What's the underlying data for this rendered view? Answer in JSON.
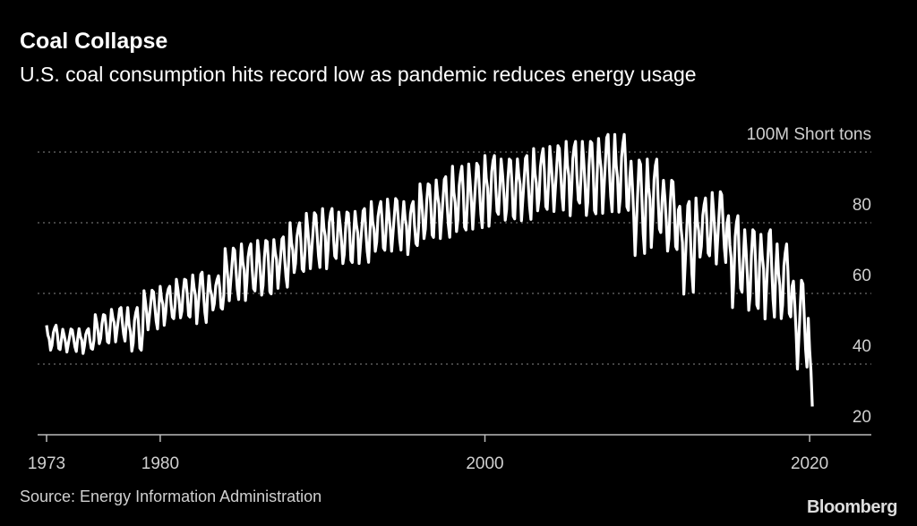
{
  "chart_data": {
    "type": "line",
    "title": "Coal Collapse",
    "subtitle": "U.S. coal consumption hits record low as pandemic reduces energy usage",
    "ylabel": "100M Short tons",
    "xlabel": "",
    "ylim": [
      20,
      100
    ],
    "yticks": [
      20,
      40,
      60,
      80,
      100
    ],
    "ytick_labels": [
      "20",
      "40",
      "60",
      "80"
    ],
    "xlim": [
      1973,
      2022.5
    ],
    "xticks": [
      1973,
      1980,
      2000,
      2020
    ],
    "xtick_labels": [
      "1973",
      "1980",
      "2000",
      "2020"
    ],
    "grid": true,
    "series_note": "monthly, annual min/max approximated",
    "annual": [
      [
        1973,
        43,
        51
      ],
      [
        1974,
        43,
        50
      ],
      [
        1975,
        43,
        50
      ],
      [
        1976,
        45,
        54
      ],
      [
        1977,
        46,
        56
      ],
      [
        1978,
        42,
        56
      ],
      [
        1979,
        49,
        61
      ],
      [
        1980,
        51,
        62
      ],
      [
        1981,
        52,
        64
      ],
      [
        1982,
        51,
        66
      ],
      [
        1983,
        54,
        65
      ],
      [
        1984,
        57,
        73
      ],
      [
        1985,
        58,
        74
      ],
      [
        1986,
        58,
        75
      ],
      [
        1987,
        61,
        76
      ],
      [
        1988,
        64,
        80
      ],
      [
        1989,
        66,
        83
      ],
      [
        1990,
        67,
        84
      ],
      [
        1991,
        67,
        83
      ],
      [
        1992,
        68,
        84
      ],
      [
        1993,
        70,
        86
      ],
      [
        1994,
        71,
        87
      ],
      [
        1995,
        71,
        86
      ],
      [
        1996,
        74,
        91
      ],
      [
        1997,
        75,
        93
      ],
      [
        1998,
        75,
        96
      ],
      [
        1999,
        77,
        97
      ],
      [
        2000,
        79,
        99
      ],
      [
        2001,
        79,
        98
      ],
      [
        2002,
        80,
        99
      ],
      [
        2003,
        81,
        101
      ],
      [
        2004,
        82,
        102
      ],
      [
        2005,
        82,
        103
      ],
      [
        2006,
        80,
        103
      ],
      [
        2007,
        82,
        105
      ],
      [
        2008,
        80,
        105
      ],
      [
        2009,
        69,
        98
      ],
      [
        2010,
        73,
        98
      ],
      [
        2011,
        70,
        92
      ],
      [
        2012,
        59,
        86
      ],
      [
        2013,
        68,
        87
      ],
      [
        2014,
        67,
        89
      ],
      [
        2015,
        56,
        82
      ],
      [
        2016,
        53,
        78
      ],
      [
        2017,
        52,
        78
      ],
      [
        2018,
        50,
        74
      ],
      [
        2019,
        37,
        64
      ]
    ],
    "final_months_2020": [
      44,
      38,
      28
    ]
  },
  "source": "Source: Energy Information Administration",
  "logo": "Bloomberg"
}
